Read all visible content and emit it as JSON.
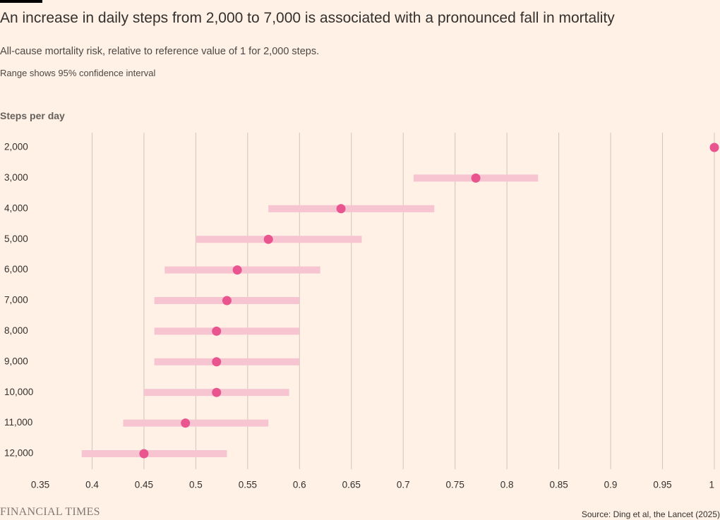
{
  "header": {
    "title": "An increase in daily steps from 2,000 to 7,000 is associated with a pronounced fall in mortality",
    "subtitle": "All-cause mortality risk, relative to reference value of 1 for 2,000 steps.",
    "note": "Range shows 95% confidence interval"
  },
  "footer": {
    "brand": "FINANCIAL TIMES",
    "source": "Source: Ding et al, the Lancet (2025)"
  },
  "colors": {
    "dot": "#e9558f",
    "range": "#f7c5d2",
    "grid": "#cec6b9",
    "text": "#33302e"
  },
  "chart_data": {
    "type": "dot-range",
    "title": "An increase in daily steps from 2,000 to 7,000 is associated with a pronounced fall in mortality",
    "ylabel": "Steps per day",
    "xlabel": "",
    "xlim": [
      0.35,
      1.0
    ],
    "xticks": [
      "0.35",
      "0.4",
      "0.45",
      "0.5",
      "0.55",
      "0.6",
      "0.65",
      "0.7",
      "0.75",
      "0.8",
      "0.85",
      "0.9",
      "0.95",
      "1"
    ],
    "xtick_values": [
      0.35,
      0.4,
      0.45,
      0.5,
      0.55,
      0.6,
      0.65,
      0.7,
      0.75,
      0.8,
      0.85,
      0.9,
      0.95,
      1.0
    ],
    "grid": true,
    "categories": [
      "2,000",
      "3,000",
      "4,000",
      "5,000",
      "6,000",
      "7,000",
      "8,000",
      "9,000",
      "10,000",
      "11,000",
      "12,000"
    ],
    "values": [
      1.0,
      0.77,
      0.64,
      0.57,
      0.54,
      0.53,
      0.52,
      0.52,
      0.52,
      0.49,
      0.45
    ],
    "ci_low": [
      null,
      0.71,
      0.57,
      0.5,
      0.47,
      0.46,
      0.46,
      0.46,
      0.45,
      0.43,
      0.39
    ],
    "ci_high": [
      null,
      0.83,
      0.73,
      0.66,
      0.62,
      0.6,
      0.6,
      0.6,
      0.59,
      0.57,
      0.53
    ]
  }
}
